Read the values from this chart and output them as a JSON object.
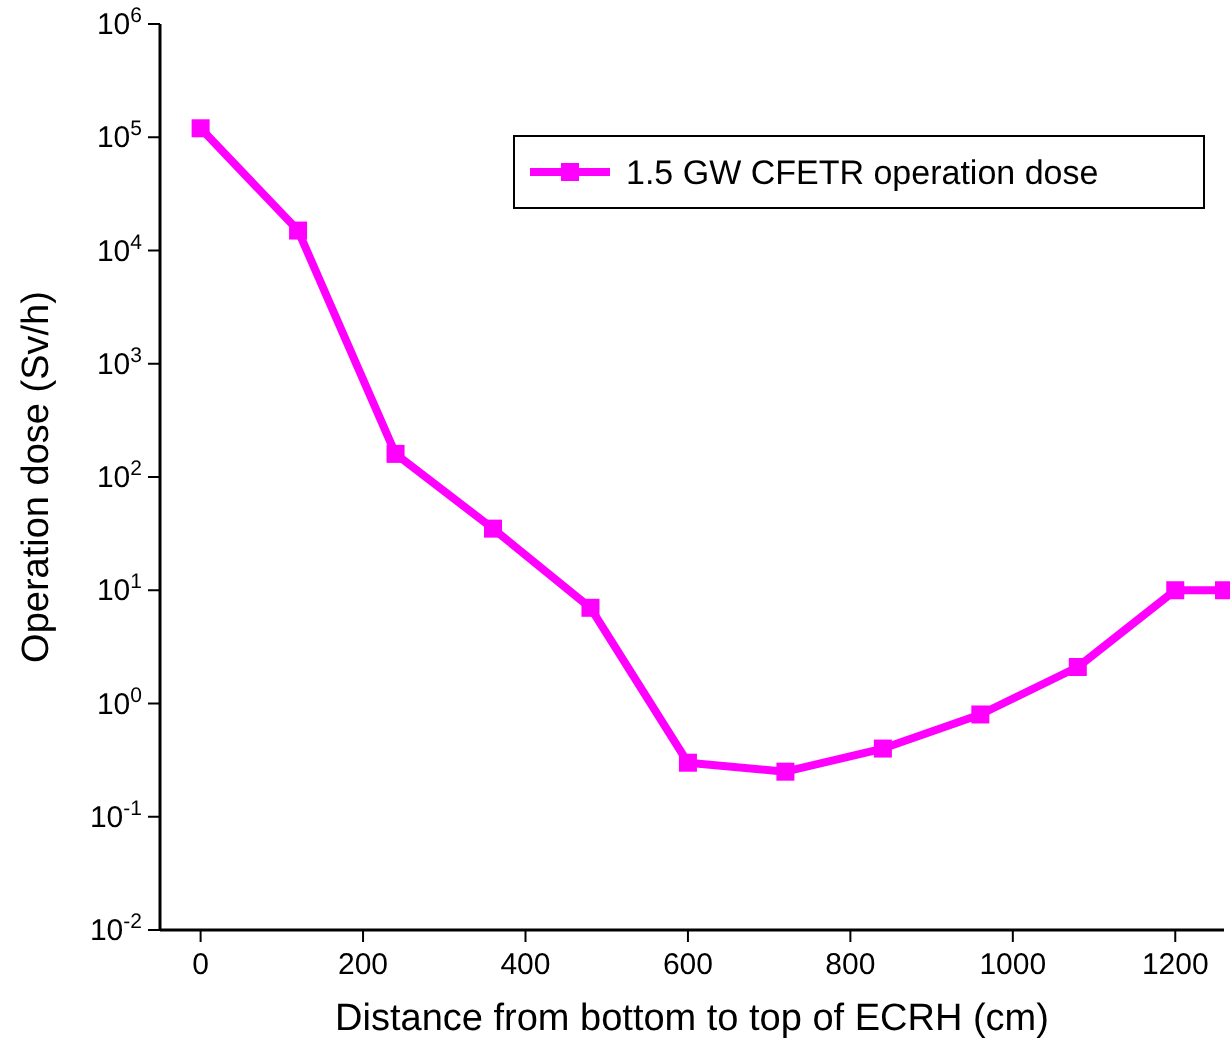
{
  "chart_data": {
    "type": "line",
    "xlabel": "Distance from bottom to top of ECRH (cm)",
    "ylabel": "Operation dose (Sv/h)",
    "x": [
      0,
      120,
      240,
      360,
      480,
      600,
      720,
      840,
      960,
      1080,
      1200,
      1260
    ],
    "series": [
      {
        "name": "1.5 GW CFETR operation dose",
        "color": "#ff00ff",
        "values": [
          120000,
          15000,
          160,
          35,
          7,
          0.3,
          0.25,
          0.4,
          0.8,
          2.1,
          10,
          10
        ]
      }
    ],
    "xlim": [
      -50,
      1260
    ],
    "xticks": [
      0,
      200,
      400,
      600,
      800,
      1000,
      1200
    ],
    "ylim": [
      0.01,
      1000000
    ],
    "yticks": [
      {
        "value": 0.01,
        "label": "10$^{-2}$"
      },
      {
        "value": 0.1,
        "label": "10$^{-1}$"
      },
      {
        "value": 1,
        "label": "10$^{0}$"
      },
      {
        "value": 10,
        "label": "10$^{1}$"
      },
      {
        "value": 100,
        "label": "10$^{2}$"
      },
      {
        "value": 1000,
        "label": "10$^{3}$"
      },
      {
        "value": 10000,
        "label": "10$^{4}$"
      },
      {
        "value": 100000,
        "label": "10$^{5}$"
      },
      {
        "value": 1000000,
        "label": "10$^{6}$"
      }
    ],
    "log": "y",
    "marker": "square",
    "line_style": "solid",
    "legend": "top right",
    "grid": false
  }
}
